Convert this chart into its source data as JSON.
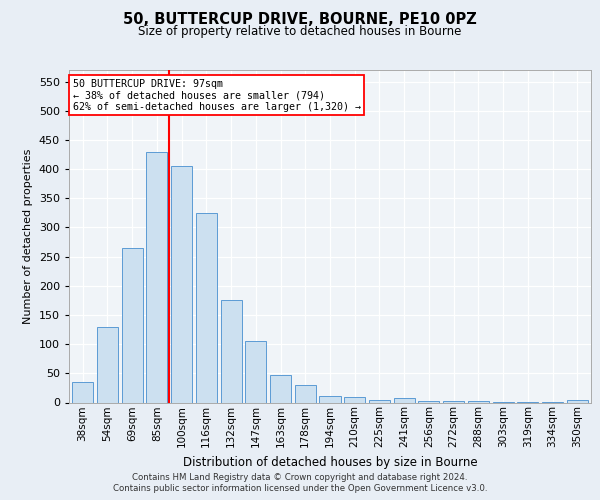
{
  "title1": "50, BUTTERCUP DRIVE, BOURNE, PE10 0PZ",
  "title2": "Size of property relative to detached houses in Bourne",
  "xlabel": "Distribution of detached houses by size in Bourne",
  "ylabel": "Number of detached properties",
  "categories": [
    "38sqm",
    "54sqm",
    "69sqm",
    "85sqm",
    "100sqm",
    "116sqm",
    "132sqm",
    "147sqm",
    "163sqm",
    "178sqm",
    "194sqm",
    "210sqm",
    "225sqm",
    "241sqm",
    "256sqm",
    "272sqm",
    "288sqm",
    "303sqm",
    "319sqm",
    "334sqm",
    "350sqm"
  ],
  "bar_heights": [
    35,
    130,
    265,
    430,
    405,
    325,
    175,
    105,
    47,
    30,
    12,
    10,
    4,
    8,
    3,
    2,
    2,
    1,
    1,
    1,
    5
  ],
  "ylim": [
    0,
    570
  ],
  "yticks": [
    0,
    50,
    100,
    150,
    200,
    250,
    300,
    350,
    400,
    450,
    500,
    550
  ],
  "bar_color": "#cce0f0",
  "bar_edgecolor": "#5b9bd5",
  "vline_color": "red",
  "annotation_text": "50 BUTTERCUP DRIVE: 97sqm\n← 38% of detached houses are smaller (794)\n62% of semi-detached houses are larger (1,320) →",
  "footer1": "Contains HM Land Registry data © Crown copyright and database right 2024.",
  "footer2": "Contains public sector information licensed under the Open Government Licence v3.0.",
  "bg_color": "#e8eef5",
  "plot_bg_color": "#f0f4f8"
}
